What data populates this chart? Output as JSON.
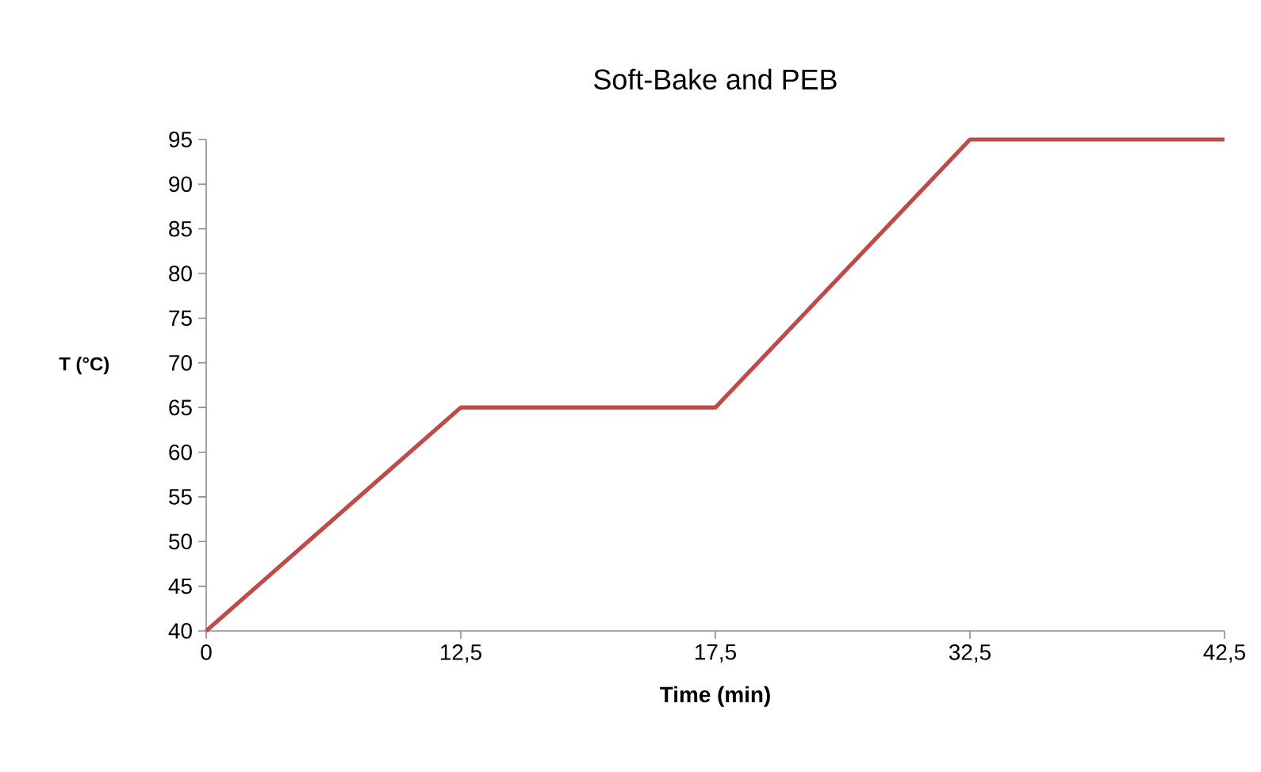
{
  "chart_data": {
    "type": "line",
    "title": "Soft-Bake and PEB",
    "xlabel": "Time (min)",
    "ylabel": "T (°C)",
    "categories": [
      "0",
      "12,5",
      "17,5",
      "32,5",
      "42,5"
    ],
    "series": [
      {
        "color": "#be4b48",
        "values": [
          40,
          65,
          65,
          95,
          95
        ]
      }
    ],
    "ylim": [
      40,
      95
    ],
    "yticks": [
      40,
      45,
      50,
      55,
      60,
      65,
      70,
      75,
      80,
      85,
      90,
      95
    ],
    "grid": false,
    "marker": "none",
    "line_style": "solid"
  }
}
